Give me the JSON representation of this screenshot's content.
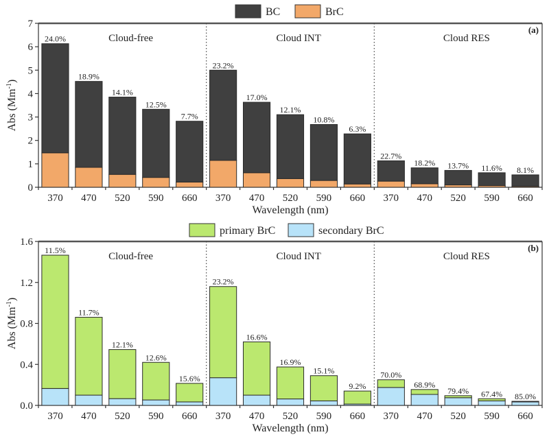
{
  "chart_data": [
    {
      "type": "bar",
      "stacked": true,
      "panel_label": "(a)",
      "title": "",
      "xlabel": "Wavelength (nm)",
      "ylabel": "Abs (Mm",
      "ylabel_sup": "-1",
      "ylabel_end": ")",
      "ylim": [
        0,
        7
      ],
      "yticks": [
        0,
        1,
        2,
        3,
        4,
        5,
        6,
        7
      ],
      "ytick_labels": [
        "0",
        "1",
        "2",
        "3",
        "4",
        "5",
        "6",
        "7"
      ],
      "groups": [
        "Cloud-free",
        "Cloud INT",
        "Cloud RES"
      ],
      "categories": [
        "370",
        "470",
        "520",
        "590",
        "660",
        "370",
        "470",
        "520",
        "590",
        "660",
        "370",
        "470",
        "520",
        "590",
        "660"
      ],
      "legend": {
        "placement": "top-center",
        "entries": [
          "BC",
          "BrC"
        ]
      },
      "series": [
        {
          "name": "BrC",
          "color": "#f2a869",
          "values": [
            1.47,
            0.85,
            0.55,
            0.42,
            0.22,
            1.15,
            0.62,
            0.37,
            0.29,
            0.14,
            0.26,
            0.15,
            0.1,
            0.07,
            0.04
          ]
        },
        {
          "name": "BC",
          "color": "#404040",
          "values": [
            4.66,
            3.67,
            3.3,
            2.91,
            2.6,
            3.85,
            3.01,
            2.73,
            2.39,
            2.14,
            0.87,
            0.68,
            0.62,
            0.55,
            0.49
          ]
        }
      ],
      "bar_labels": [
        "24.0%",
        "18.9%",
        "14.1%",
        "12.5%",
        "7.7%",
        "23.2%",
        "17.0%",
        "12.1%",
        "10.8%",
        "6.3%",
        "22.7%",
        "18.2%",
        "13.7%",
        "11.6%",
        "8.1%"
      ],
      "grid": false
    },
    {
      "type": "bar",
      "stacked": true,
      "panel_label": "(b)",
      "title": "",
      "xlabel": "Wavelength (nm)",
      "ylabel": "Abs (Mm",
      "ylabel_sup": "-1",
      "ylabel_end": ")",
      "ylim": [
        0,
        1.6
      ],
      "yticks": [
        0,
        0.4,
        0.8,
        1.2,
        1.6
      ],
      "ytick_labels": [
        "0.0",
        "0.4",
        "0.8",
        "1.2",
        "1.6"
      ],
      "groups": [
        "Cloud-free",
        "Cloud INT",
        "Cloud RES"
      ],
      "categories": [
        "370",
        "470",
        "520",
        "590",
        "660",
        "370",
        "470",
        "520",
        "590",
        "660",
        "370",
        "470",
        "520",
        "590",
        "660"
      ],
      "legend": {
        "placement": "top-center",
        "entries": [
          "primary BrC",
          "secondary BrC"
        ]
      },
      "series": [
        {
          "name": "secondary BrC",
          "color": "#b8e3f9",
          "values": [
            0.165,
            0.1,
            0.066,
            0.053,
            0.034,
            0.27,
            0.1,
            0.063,
            0.044,
            0.013,
            0.175,
            0.107,
            0.075,
            0.044,
            0.034
          ]
        },
        {
          "name": "primary BrC",
          "color": "#bbe86f",
          "values": [
            1.301,
            0.76,
            0.479,
            0.367,
            0.181,
            0.89,
            0.52,
            0.312,
            0.246,
            0.127,
            0.075,
            0.048,
            0.02,
            0.021,
            0.006
          ]
        }
      ],
      "bar_labels": [
        "11.5%",
        "11.7%",
        "12.1%",
        "12.6%",
        "15.6%",
        "23.2%",
        "16.6%",
        "16.9%",
        "15.1%",
        "9.2%",
        "70.0%",
        "68.9%",
        "79.4%",
        "67.4%",
        "85.0%"
      ],
      "grid": false
    }
  ]
}
